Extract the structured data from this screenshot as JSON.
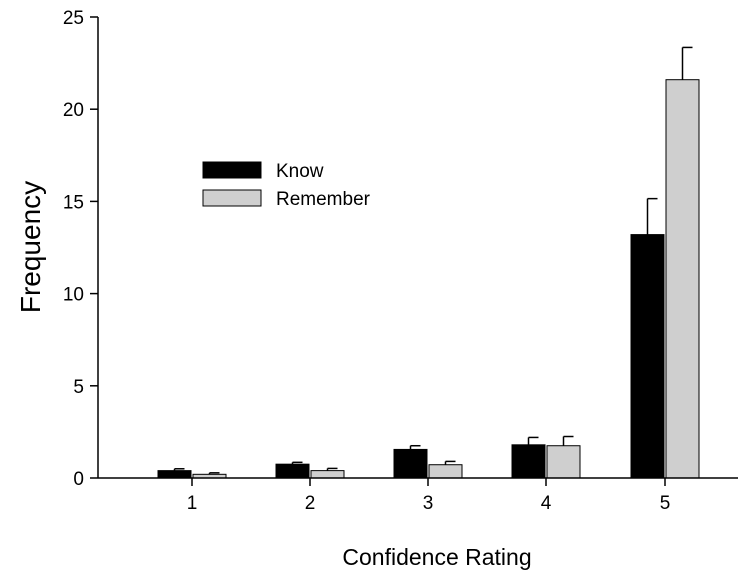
{
  "chart_data": {
    "type": "bar",
    "title": "",
    "xlabel": "Confidence Rating",
    "ylabel": "Frequency",
    "categories": [
      "1",
      "2",
      "3",
      "4",
      "5"
    ],
    "ylim": [
      0,
      25
    ],
    "yticks": [
      "0",
      "5",
      "10",
      "15",
      "20",
      "25"
    ],
    "grid": false,
    "legend_position": "upper-left",
    "series": [
      {
        "name": "Know",
        "color": "#000000",
        "values": [
          0.4,
          0.75,
          1.55,
          1.8,
          13.2
        ],
        "errors": [
          0.1,
          0.1,
          0.2,
          0.4,
          1.95
        ]
      },
      {
        "name": "Remember",
        "color": "#cfcfcf",
        "values": [
          0.2,
          0.4,
          0.72,
          1.75,
          21.6
        ],
        "errors": [
          0.08,
          0.12,
          0.18,
          0.5,
          1.75
        ]
      }
    ]
  }
}
